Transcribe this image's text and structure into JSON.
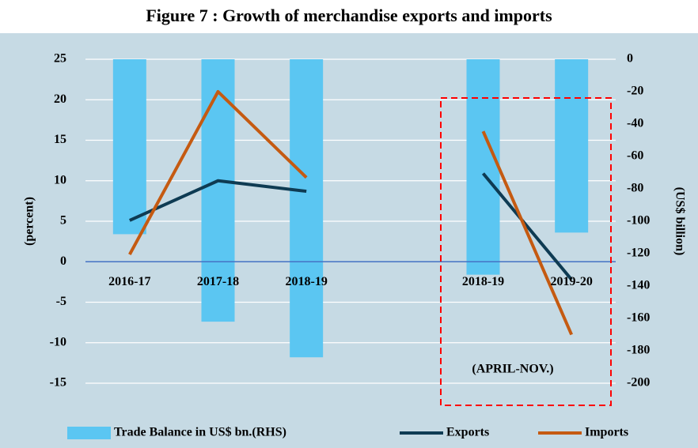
{
  "chart_data": {
    "type": "bar",
    "title": "Figure 7 : Growth of merchandise exports and imports",
    "y_label": "(percent)",
    "y2_label": "(US$ billion)",
    "annotation": "(APRIL-NOV.)",
    "categories": [
      "2016-17",
      "2017-18",
      "2018-19",
      null,
      "2018-19",
      "2019-20"
    ],
    "ylim": [
      -15,
      25
    ],
    "yticks": [
      -15,
      -10,
      -5,
      0,
      5,
      10,
      15,
      20,
      25
    ],
    "y2lim": [
      -200,
      0
    ],
    "y2ticks": [
      -200,
      -180,
      -160,
      -140,
      -120,
      -100,
      -80,
      -60,
      -40,
      -20,
      0
    ],
    "grid": true,
    "legend": "bottom",
    "series": [
      {
        "name": "Trade Balance in US$ bn.(RHS)",
        "type": "bar",
        "axis": "y2",
        "color": "#5bc6f2",
        "values": [
          -108,
          -162,
          -184,
          null,
          -133,
          -107
        ]
      },
      {
        "name": "Exports",
        "type": "line",
        "color": "#0e3b53",
        "values": [
          5.1,
          10.0,
          8.7,
          null,
          10.9,
          -2.2
        ]
      },
      {
        "name": "Imports",
        "type": "line",
        "color": "#c55a11",
        "values": [
          0.9,
          21.0,
          10.4,
          null,
          16.1,
          -9.0
        ]
      }
    ]
  }
}
